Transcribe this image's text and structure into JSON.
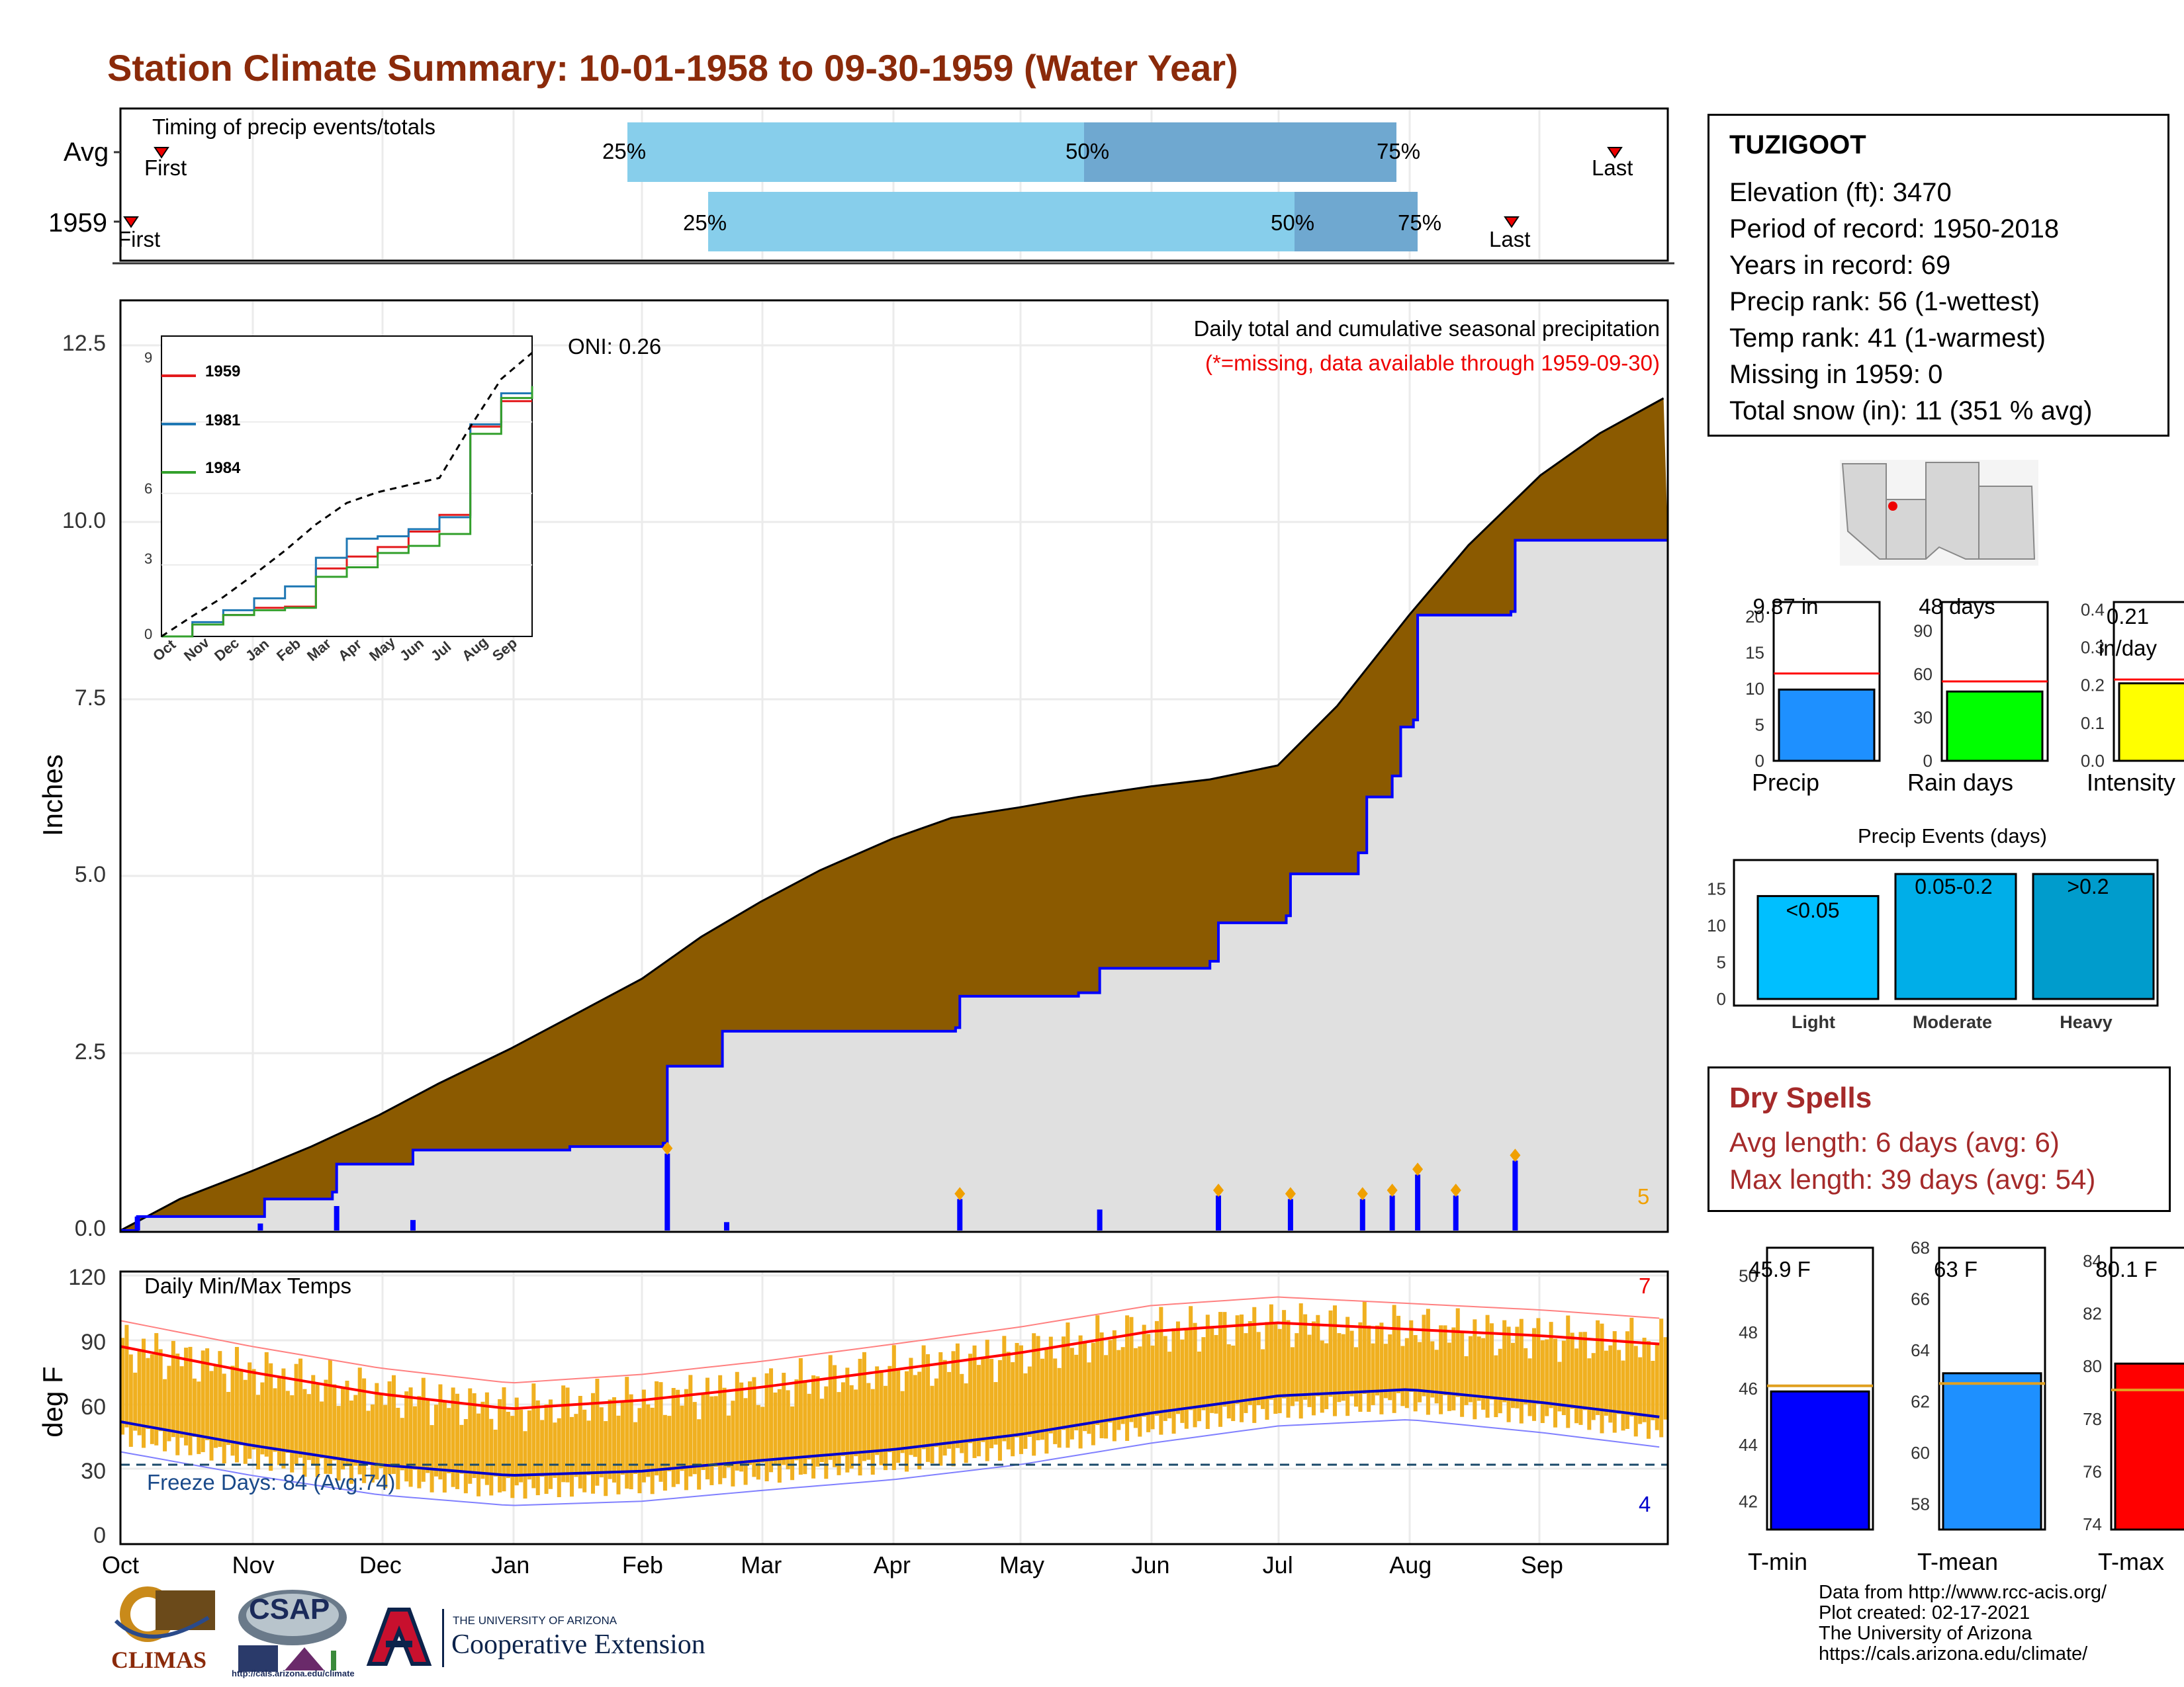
{
  "title": "Station Climate Summary: 10-01-1958 to 09-30-1959 (Water Year)",
  "timing": {
    "label": "Timing of precip events/totals",
    "rows": [
      "Avg",
      "1959"
    ],
    "avg": {
      "first_label": "First",
      "last_label": "Last",
      "p25": "25%",
      "p50": "50%",
      "p75": "75%"
    },
    "y1959": {
      "first_label": "First",
      "last_label": "Last",
      "p25": "25%",
      "p50": "50%",
      "p75": "75%"
    }
  },
  "colors": {
    "title": "#8b2a0a",
    "precip_fill": "#8b5a00",
    "precip_line": "#0000ff",
    "bars": "#0000ff",
    "temp_bars": "#f0b020",
    "avg_max": "#ff0000",
    "avg_min": "#0000cc",
    "dry": "#a52a2a"
  },
  "main_chart": {
    "ylabel": "Inches",
    "yticks": [
      "0.0",
      "2.5",
      "5.0",
      "7.5",
      "10.0",
      "12.5"
    ],
    "caption": "Daily total and cumulative seasonal precipitation",
    "missing_note": "(*=missing, data available through 1959-09-30)",
    "oni": "ONI: 0.26",
    "count_label": "5"
  },
  "inset": {
    "yticks": [
      "0",
      "3",
      "6",
      "9"
    ],
    "months": [
      "Oct",
      "Nov",
      "Dec",
      "Jan",
      "Feb",
      "Mar",
      "Apr",
      "May",
      "Jun",
      "Jul",
      "Aug",
      "Sep"
    ],
    "legend": [
      {
        "name": "1959",
        "color": "#e31a1c"
      },
      {
        "name": "1981",
        "color": "#1f78b4"
      },
      {
        "name": "1984",
        "color": "#33a02c"
      }
    ]
  },
  "temp_chart": {
    "ylabel": "deg F",
    "title": "Daily Min/Max Temps",
    "yticks": [
      "0",
      "30",
      "60",
      "90",
      "120"
    ],
    "freeze": "Freeze Days: 84 (Avg:74)",
    "max_count": "7",
    "min_count": "4",
    "months": [
      "Oct",
      "Nov",
      "Dec",
      "Jan",
      "Feb",
      "Mar",
      "Apr",
      "May",
      "Jun",
      "Jul",
      "Aug",
      "Sep"
    ]
  },
  "station": {
    "name": "TUZIGOOT",
    "lines": [
      "Elevation (ft): 3470",
      "Period of record: 1950-2018",
      "Years in record: 69",
      "Precip rank: 56 (1-wettest)",
      "Temp rank: 41 (1-warmest)",
      "Missing in 1959: 0",
      "Total snow (in): 11 (351 % avg)"
    ]
  },
  "mini_bars": [
    {
      "label": "Precip",
      "value_text": "9.87 in",
      "value": 9.87,
      "avg": 12.1,
      "ymax": 22,
      "yticks": [
        "0",
        "5",
        "10",
        "15",
        "20"
      ],
      "color": "#1e90ff"
    },
    {
      "label": "Rain days",
      "value_text": "48 days",
      "value": 48,
      "avg": 55,
      "ymax": 110,
      "yticks": [
        "0",
        "30",
        "60",
        "90"
      ],
      "color": "#00ff00"
    },
    {
      "label": "Intensity",
      "value_text": "0.21 in/day",
      "value": 0.205,
      "avg": 0.215,
      "ymax": 0.42,
      "yticks": [
        "0.0",
        "0.1",
        "0.2",
        "0.3",
        "0.4"
      ],
      "color": "#ffff00"
    }
  ],
  "precip_events": {
    "title": "Precip Events (days)",
    "yticks": [
      "0",
      "5",
      "10",
      "15"
    ],
    "bars": [
      {
        "label": "Light",
        "range": "<0.05",
        "value": 14,
        "color": "#00bfff"
      },
      {
        "label": "Moderate",
        "range": "0.05-0.2",
        "value": 17,
        "color": "#00aee8"
      },
      {
        "label": "Heavy",
        "range": ">0.2",
        "value": 17,
        "color": "#009ccc"
      }
    ]
  },
  "dry_spells": {
    "title": "Dry Spells",
    "avg": "Avg length: 6 days (avg: 6)",
    "max": "Max length: 39 days (avg: 54)"
  },
  "temp_bars": [
    {
      "label": "T-min",
      "value_text": "45.9 F",
      "value": 45.9,
      "avg": 46.1,
      "ymin": 41,
      "ymax": 51,
      "yticks": [
        "42",
        "44",
        "46",
        "48",
        "50"
      ],
      "color": "#0000ff"
    },
    {
      "label": "T-mean",
      "value_text": "63 F",
      "value": 63.1,
      "avg": 62.7,
      "ymin": 57,
      "ymax": 68,
      "yticks": [
        "58",
        "60",
        "62",
        "64",
        "66",
        "68"
      ],
      "color": "#1e90ff"
    },
    {
      "label": "T-max",
      "value_text": "80.1 F",
      "value": 80.1,
      "avg": 79.1,
      "ymin": 73.8,
      "ymax": 84.5,
      "yticks": [
        "74",
        "76",
        "78",
        "80",
        "82",
        "84"
      ],
      "color": "#ff0000"
    }
  ],
  "credits": [
    "Data from http://www.rcc-acis.org/",
    "Plot created: 02-17-2021",
    "The University of Arizona",
    "https://cals.arizona.edu/climate/"
  ],
  "logos": {
    "climas": "CLIMAS",
    "csap": "CSAP",
    "csap_url": "http://cals.arizona.edu/climate",
    "ua_small": "THE UNIVERSITY OF ARIZONA",
    "ua_big": "Cooperative Extension"
  },
  "chart_data": {
    "type": "area",
    "title": "Daily total and cumulative seasonal precipitation",
    "xlabel": "",
    "ylabel": "Inches",
    "ylim": [
      0,
      13.3
    ],
    "x_range": [
      "1958-10-01",
      "1959-09-30"
    ],
    "series": [
      {
        "name": "Avg",
        "x": [
          "1958-10-01",
          "1958-10-15",
          "1958-11-01",
          "1958-11-15",
          "1958-12-01",
          "1958-12-15",
          "1959-01-01",
          "1959-01-15",
          "1959-02-01",
          "1959-02-15",
          "1959-03-01",
          "1959-03-15",
          "1959-04-01",
          "1959-04-15",
          "1959-05-01",
          "1959-05-15",
          "1959-06-01",
          "1959-06-15",
          "1959-07-01",
          "1959-07-15",
          "1959-08-01",
          "1959-08-15",
          "1959-09-01",
          "1959-09-15",
          "1959-09-30"
        ],
        "values": [
          0.0,
          0.45,
          0.85,
          1.2,
          1.65,
          2.1,
          2.6,
          3.05,
          3.6,
          4.2,
          4.7,
          5.15,
          5.6,
          5.9,
          6.05,
          6.2,
          6.35,
          6.45,
          6.65,
          7.5,
          8.8,
          9.8,
          10.8,
          11.4,
          11.9
        ]
      },
      {
        "name": "1959",
        "x": [
          "1958-10-01",
          "1958-10-05",
          "1958-11-04",
          "1958-11-20",
          "1958-11-21",
          "1958-12-09",
          "1959-01-15",
          "1959-02-06",
          "1959-02-07",
          "1959-02-20",
          "1959-04-16",
          "1959-04-17",
          "1959-05-15",
          "1959-05-20",
          "1959-06-15",
          "1959-06-17",
          "1959-07-03",
          "1959-07-04",
          "1959-07-20",
          "1959-07-22",
          "1959-07-28",
          "1959-07-30",
          "1959-08-02",
          "1959-08-03",
          "1959-08-25",
          "1959-08-26",
          "1959-09-30"
        ],
        "values": [
          0.0,
          0.2,
          0.45,
          0.55,
          0.95,
          1.15,
          1.2,
          1.25,
          2.35,
          2.85,
          2.9,
          3.35,
          3.4,
          3.75,
          3.85,
          4.4,
          4.5,
          5.1,
          5.4,
          6.2,
          6.5,
          7.2,
          7.3,
          8.8,
          8.85,
          9.87,
          9.87
        ]
      }
    ],
    "daily_precip_1959": [
      {
        "date": "1958-10-05",
        "in": 0.2
      },
      {
        "date": "1958-11-03",
        "in": 0.1
      },
      {
        "date": "1958-11-21",
        "in": 0.35
      },
      {
        "date": "1958-12-09",
        "in": 0.15
      },
      {
        "date": "1959-02-07",
        "in": 1.1
      },
      {
        "date": "1959-02-21",
        "in": 0.12
      },
      {
        "date": "1959-04-17",
        "in": 0.45
      },
      {
        "date": "1959-05-20",
        "in": 0.3
      },
      {
        "date": "1959-06-17",
        "in": 0.5
      },
      {
        "date": "1959-07-04",
        "in": 0.45
      },
      {
        "date": "1959-07-21",
        "in": 0.45
      },
      {
        "date": "1959-07-28",
        "in": 0.5
      },
      {
        "date": "1959-08-03",
        "in": 0.8
      },
      {
        "date": "1959-08-12",
        "in": 0.5
      },
      {
        "date": "1959-08-26",
        "in": 1.0
      }
    ],
    "inset_series": [
      {
        "name": "1959",
        "months": [
          "Oct",
          "Nov",
          "Dec",
          "Jan",
          "Feb",
          "Mar",
          "Apr",
          "May",
          "Jun",
          "Jul",
          "Aug",
          "Sep",
          "Sep-end"
        ],
        "values": [
          0,
          0.5,
          0.9,
          1.2,
          1.25,
          2.85,
          3.35,
          3.75,
          4.4,
          5.1,
          8.8,
          9.87,
          9.87
        ]
      },
      {
        "name": "1981",
        "months": [
          "Oct",
          "Nov",
          "Dec",
          "Jan",
          "Feb",
          "Mar",
          "Apr",
          "May",
          "Jun",
          "Jul",
          "Aug",
          "Sep",
          "Sep-end"
        ],
        "values": [
          0,
          0.6,
          1.1,
          1.6,
          2.1,
          3.3,
          4.1,
          4.2,
          4.5,
          5.0,
          8.9,
          10.2,
          10.5
        ]
      },
      {
        "name": "1984",
        "months": [
          "Oct",
          "Nov",
          "Dec",
          "Jan",
          "Feb",
          "Mar",
          "Apr",
          "May",
          "Jun",
          "Jul",
          "Aug",
          "Sep",
          "Sep-end"
        ],
        "values": [
          0,
          0.5,
          0.9,
          1.1,
          1.2,
          2.5,
          2.9,
          3.5,
          3.8,
          4.3,
          8.5,
          10.0,
          10.5
        ]
      },
      {
        "name": "Avg",
        "months": [
          "Oct",
          "Nov",
          "Dec",
          "Jan",
          "Feb",
          "Mar",
          "Apr",
          "May",
          "Jun",
          "Jul",
          "Aug",
          "Sep",
          "Sep-end"
        ],
        "values": [
          0,
          0.85,
          1.65,
          2.6,
          3.6,
          4.7,
          5.6,
          6.05,
          6.35,
          6.65,
          8.8,
          10.8,
          11.9
        ]
      }
    ],
    "temps": {
      "ylim": [
        0,
        120
      ],
      "avg_max": {
        "x": [
          "1958-10-01",
          "1958-11-01",
          "1958-12-01",
          "1959-01-01",
          "1959-02-01",
          "1959-03-01",
          "1959-04-01",
          "1959-05-01",
          "1959-06-01",
          "1959-07-01",
          "1959-08-01",
          "1959-09-01",
          "1959-09-30"
        ],
        "values": [
          87,
          75,
          65,
          58,
          62,
          68,
          76,
          84,
          94,
          98,
          95,
          92,
          88
        ]
      },
      "avg_min": {
        "x": [
          "1958-10-01",
          "1958-11-01",
          "1958-12-01",
          "1959-01-01",
          "1959-02-01",
          "1959-03-01",
          "1959-04-01",
          "1959-05-01",
          "1959-06-01",
          "1959-07-01",
          "1959-08-01",
          "1959-09-01",
          "1959-09-30"
        ],
        "values": [
          52,
          41,
          32,
          27,
          29,
          34,
          39,
          46,
          56,
          64,
          67,
          61,
          54
        ]
      },
      "freeze_line": 32
    }
  }
}
